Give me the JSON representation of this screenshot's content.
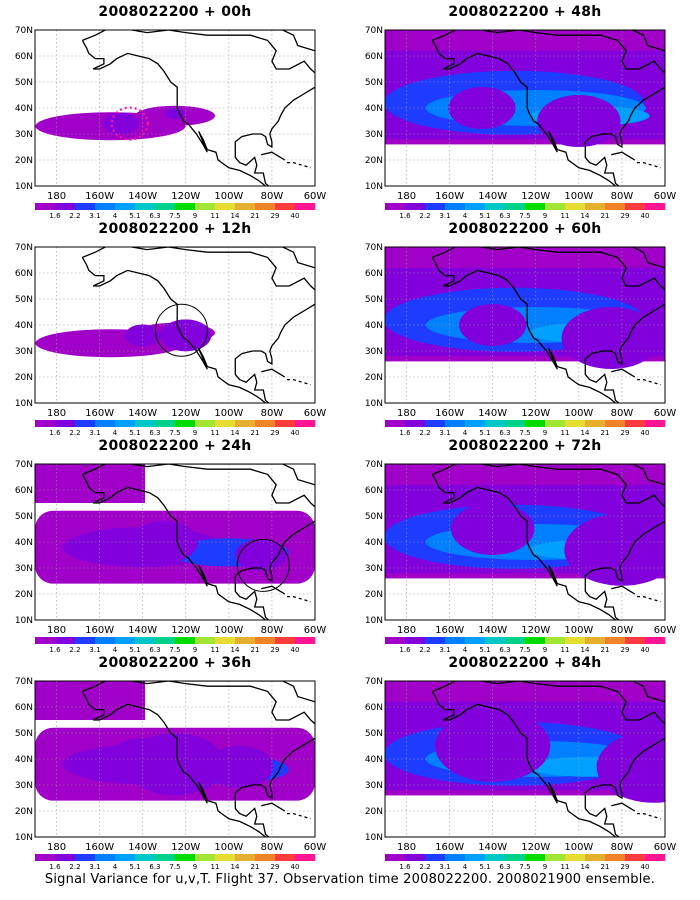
{
  "figure": {
    "caption": "Signal Variance for u,v,T. Flight 37. Observation time 2008022200. 2008021900 ensemble."
  },
  "chart_data": [
    {
      "type": "heatmap",
      "title": "2008022200 + 00h",
      "base_time": "2008022200",
      "lead": "+ 00h",
      "coverage": "low",
      "circle": "dotted",
      "blobs": [
        {
          "lon": -150,
          "lat": 34,
          "level": 2
        },
        {
          "lon": -125,
          "lat": 38,
          "level": 1
        }
      ]
    },
    {
      "type": "heatmap",
      "title": "2008022200 + 12h",
      "base_time": "2008022200",
      "lead": "+ 12h",
      "coverage": "low",
      "circle": "solid",
      "blobs": [
        {
          "lon": -140,
          "lat": 36,
          "level": 2
        },
        {
          "lon": -120,
          "lat": 36,
          "level": 3
        }
      ]
    },
    {
      "type": "heatmap",
      "title": "2008022200 + 24h",
      "base_time": "2008022200",
      "lead": "+ 24h",
      "coverage": "medium",
      "circle": "solid",
      "blobs": [
        {
          "lon": -130,
          "lat": 40,
          "level": 4
        },
        {
          "lon": -85,
          "lat": 35,
          "level": 3
        }
      ]
    },
    {
      "type": "heatmap",
      "title": "2008022200 + 36h",
      "base_time": "2008022200",
      "lead": "+ 36h",
      "coverage": "medium",
      "circle": "none",
      "blobs": [
        {
          "lon": -125,
          "lat": 38,
          "level": 6
        },
        {
          "lon": -140,
          "lat": 40,
          "level": 4
        },
        {
          "lon": -95,
          "lat": 37,
          "level": 4
        }
      ]
    },
    {
      "type": "heatmap",
      "title": "2008022200 + 48h",
      "base_time": "2008022200",
      "lead": "+ 48h",
      "coverage": "high",
      "circle": "none",
      "blobs": [
        {
          "lon": -100,
          "lat": 35,
          "level": 5
        },
        {
          "lon": -145,
          "lat": 40,
          "level": 4
        }
      ]
    },
    {
      "type": "heatmap",
      "title": "2008022200 + 60h",
      "base_time": "2008022200",
      "lead": "+ 60h",
      "coverage": "high",
      "circle": "none",
      "blobs": [
        {
          "lon": -85,
          "lat": 35,
          "level": 6
        },
        {
          "lon": -140,
          "lat": 40,
          "level": 4
        }
      ]
    },
    {
      "type": "heatmap",
      "title": "2008022200 + 72h",
      "base_time": "2008022200",
      "lead": "+ 72h",
      "coverage": "high",
      "circle": "none",
      "blobs": [
        {
          "lon": -80,
          "lat": 37,
          "level": 7
        },
        {
          "lon": -140,
          "lat": 45,
          "level": 5
        }
      ]
    },
    {
      "type": "heatmap",
      "title": "2008022200 + 84h",
      "base_time": "2008022200",
      "lead": "+ 84h",
      "coverage": "high",
      "circle": "none",
      "blobs": [
        {
          "lon": -65,
          "lat": 37,
          "level": 7
        },
        {
          "lon": -140,
          "lat": 45,
          "level": 7
        }
      ]
    }
  ],
  "axes": {
    "y_ticks": [
      "70N",
      "60N",
      "50N",
      "40N",
      "30N",
      "20N",
      "10N"
    ],
    "x_ticks": [
      "180",
      "160W",
      "140W",
      "120W",
      "100W",
      "80W",
      "60W"
    ],
    "lon_range": [
      -190,
      -60
    ],
    "lat_range": [
      10,
      70
    ],
    "grid": "dotted"
  },
  "colorbar": {
    "labels": [
      "1.6",
      "2.2",
      "3.1",
      "4",
      "5.1",
      "6.3",
      "7.5",
      "9",
      "11",
      "14",
      "21",
      "29",
      "40"
    ],
    "colors": [
      "#a000c8",
      "#8200dc",
      "#1e3cff",
      "#0080ff",
      "#00a0ff",
      "#00c8c8",
      "#00d28c",
      "#00dc00",
      "#a0e632",
      "#e6dc32",
      "#e6af2d",
      "#f08228",
      "#fa3c3c",
      "#ff1493"
    ]
  }
}
